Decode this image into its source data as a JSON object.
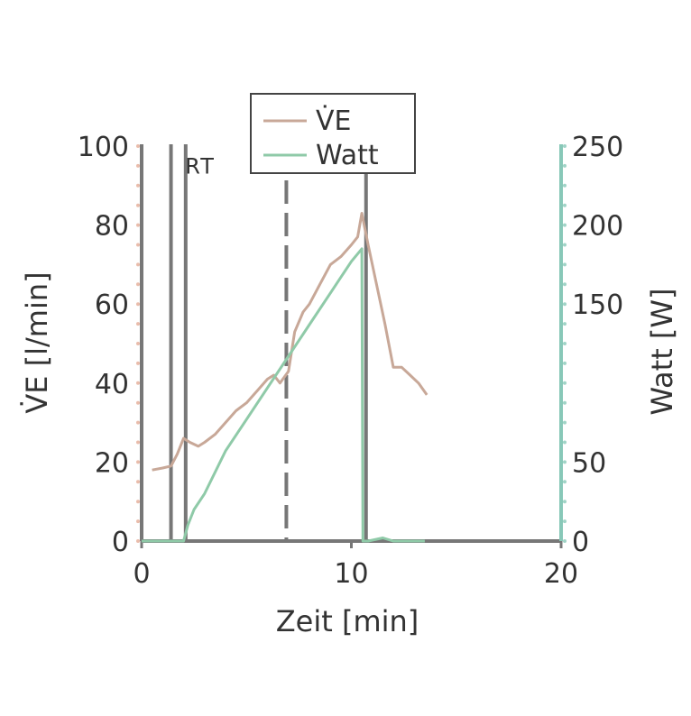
{
  "chart_data": {
    "type": "line",
    "xlabel": "Zeit [min]",
    "ylabel_left": "V̇E [l/min]",
    "ylabel_right": "Watt [W]",
    "xlim": [
      0,
      20
    ],
    "ylim_left": [
      0,
      100
    ],
    "ylim_right": [
      0,
      250
    ],
    "x_ticks": [
      "0",
      "10",
      "20"
    ],
    "y_left_ticks": [
      "0",
      "20",
      "40",
      "60",
      "80",
      "100"
    ],
    "y_right_ticks": [
      "0",
      "50",
      "150",
      "200",
      "250"
    ],
    "y_right_tick_values": [
      0,
      50,
      150,
      200,
      250
    ],
    "legend_position": "top-center",
    "grid": false,
    "colors": {
      "ve": "#c8a898",
      "watt": "#8fcaa8",
      "axis_left": "#e0a088",
      "axis_right": "#88c8b8",
      "vline": "#777777"
    },
    "series": [
      {
        "name": "V̇E",
        "axis": "left",
        "x": [
          0.5,
          1.0,
          1.4,
          1.7,
          2.0,
          2.3,
          2.7,
          3.0,
          3.5,
          4.0,
          4.5,
          5.0,
          5.5,
          6.0,
          6.3,
          6.6,
          7.0,
          7.3,
          7.7,
          8.0,
          8.5,
          9.0,
          9.5,
          10.0,
          10.3,
          10.5,
          10.8,
          11.2,
          11.6,
          12.0,
          12.4,
          12.8,
          13.2,
          13.6
        ],
        "y": [
          18,
          18.5,
          19,
          22,
          26,
          25,
          24,
          25,
          27,
          30,
          33,
          35,
          38,
          41,
          42,
          40,
          43,
          53,
          58,
          60,
          65,
          70,
          72,
          75,
          77,
          83,
          75,
          65,
          55,
          44,
          44,
          42,
          40,
          37
        ]
      },
      {
        "name": "Watt",
        "axis": "right",
        "x": [
          0,
          2.0,
          2.2,
          2.5,
          3.0,
          4.0,
          5.0,
          6.0,
          7.0,
          8.0,
          9.0,
          10.0,
          10.5,
          10.55,
          10.8,
          11.5,
          12.0,
          13.5
        ],
        "y": [
          0,
          0,
          10,
          20,
          30,
          57,
          77,
          97,
          117,
          137,
          157,
          177,
          185,
          0,
          0,
          2,
          0,
          0
        ]
      }
    ],
    "vertical_lines": [
      {
        "x": 1.4,
        "style": "solid"
      },
      {
        "x": 2.1,
        "style": "solid"
      },
      {
        "x": 6.9,
        "style": "dashed"
      },
      {
        "x": 10.7,
        "style": "solid"
      }
    ],
    "annotations": [
      {
        "text": "RT",
        "x": 2.8,
        "y": 93,
        "axis": "left"
      }
    ]
  }
}
